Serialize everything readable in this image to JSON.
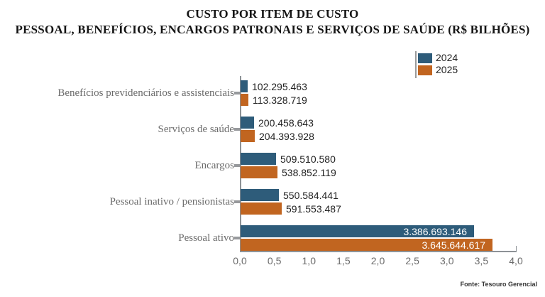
{
  "title": {
    "line1": "CUSTO POR ITEM DE CUSTO",
    "line2": "PESSOAL, BENEFÍCIOS, ENCARGOS PATRONAIS E SERVIÇOS DE SAÚDE (R$ BILHÕES)"
  },
  "legend": {
    "position": "top-right",
    "entries": [
      {
        "label": "2024",
        "color": "#2E5C7A"
      },
      {
        "label": "2025",
        "color": "#C16520"
      }
    ]
  },
  "source": "Fonte: Tesouro Gerencial",
  "chart_data": {
    "type": "bar",
    "orientation": "horizontal",
    "title": "CUSTO POR ITEM DE CUSTO — PESSOAL, BENEFÍCIOS, ENCARGOS PATRONAIS E SERVIÇOS DE SAÚDE (R$ BILHÕES)",
    "categories": [
      "Benefícios previdenciários e assistenciais",
      "Serviços de saúde",
      "Encargos",
      "Pessoal inativo / pensionistas",
      "Pessoal ativo"
    ],
    "series": [
      {
        "name": "2024",
        "color": "#2E5C7A",
        "values": [
          102295463,
          200458643,
          509510580,
          550584441,
          3386693146
        ],
        "labels": [
          "102.295.463",
          "200.458.643",
          "509.510.580",
          "550.584.441",
          "3.386.693.146"
        ]
      },
      {
        "name": "2025",
        "color": "#C16520",
        "values": [
          113328719,
          204393928,
          538852119,
          591553487,
          3645644617
        ],
        "labels": [
          "113.328.719",
          "204.393.928",
          "538.852.119",
          "591.553.487",
          "3.645.644.617"
        ]
      }
    ],
    "xlabel": "",
    "ylabel": "",
    "unit": "R$ bilhões",
    "axis": {
      "min": 0,
      "max": 4000000000,
      "tick_interval": 500000000,
      "tick_labels": [
        "0,0",
        "0,5",
        "1,0",
        "1,5",
        "2,0",
        "2,5",
        "3,0",
        "3,5",
        "4,0"
      ]
    },
    "grid": false,
    "legend_position": "top-right"
  }
}
